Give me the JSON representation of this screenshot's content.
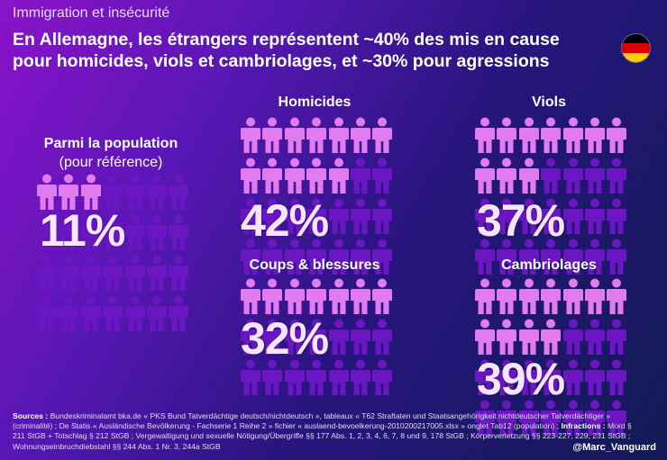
{
  "overline": "Immigration et insécurité",
  "title": "En Allemagne, les étrangers représentent ~40% des mis en cause pour homicides, viols et cambriolages, et ~30% pour agressions",
  "colors": {
    "highlight_person": "#e27bf0",
    "base_person": "#6a16c2",
    "percentage_text": "#f4e6ff",
    "flag": [
      "#000000",
      "#dd0000",
      "#ffce00"
    ]
  },
  "chart_data": {
    "type": "pictogram",
    "panels": [
      {
        "title": "Parmi la population",
        "subtitle": "(pour référence)",
        "value": 11,
        "label": "11%",
        "icons_total": 28,
        "icons_highlighted": 3
      },
      {
        "title": "Homicides",
        "value": 42,
        "label": "42%",
        "icons_total": 28,
        "icons_highlighted": 12
      },
      {
        "title": "Viols",
        "value": 37,
        "label": "37%",
        "icons_total": 28,
        "icons_highlighted": 10
      },
      {
        "title": "Coups & blessures",
        "value": 32,
        "label": "32%",
        "icons_total": 21,
        "icons_highlighted": 7
      },
      {
        "title": "Cambriolages",
        "value": 39,
        "label": "39%",
        "icons_total": 28,
        "icons_highlighted": 11
      }
    ]
  },
  "footer": {
    "sources_label": "Sources :",
    "sources_text": "Bundeskriminalamt bka.de « PKS Bund Tatverdächtige deutsch/nichtdeutsch », tableaux « T62 Straftaten und Staatsangehörigkeit nichtdeutscher Tatverdächtiger » (criminalité) ; De Statis « Ausländische Bevölkerung - Fachserie 1 Reihe 2 » fichier « auslaend-bevoelkerung-2010200217005.xlsx » onglet Tab12 (population) ;",
    "infractions_label": "Infractions :",
    "infractions_text": "Mord § 211 StGB + Totschlag § 212 StGB ; Vergewaltigung und sexuelle Nötigung/Übergriffe §§ 177 Abs. 1, 2, 3, 4, 6, 7, 8 und 9, 178 StGB ; Körperverletzung §§ 223-227, 229, 231 StGB ; Wohnungseinbruchdiebstahl §§ 244 Abs. 1 Nr. 3, 244a StGB",
    "handle": "@Marc_Vanguard"
  }
}
